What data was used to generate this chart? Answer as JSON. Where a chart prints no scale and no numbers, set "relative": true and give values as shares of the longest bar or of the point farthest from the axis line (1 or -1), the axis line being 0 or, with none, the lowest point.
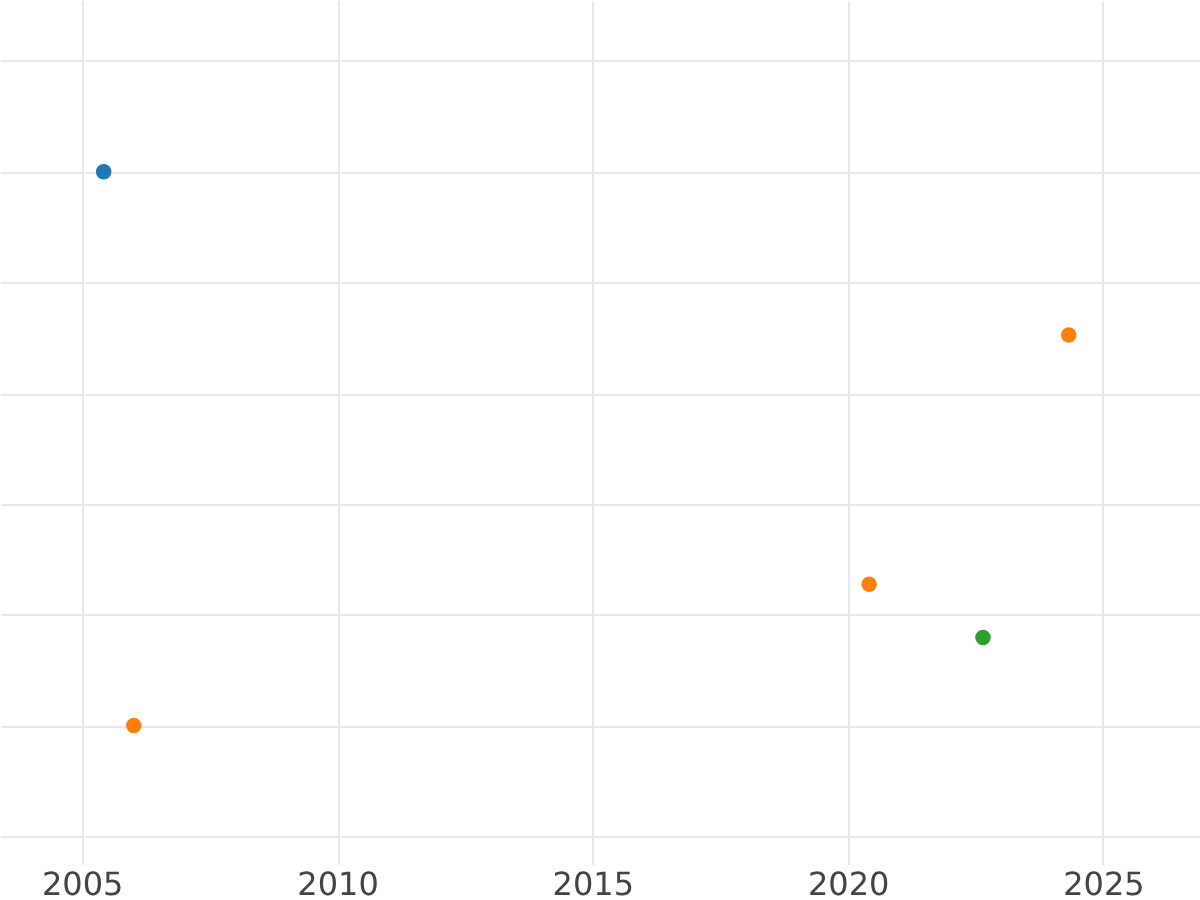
{
  "chart_data": {
    "type": "scatter",
    "relative": true,
    "xlim": [
      2003.4,
      2026.9
    ],
    "xticks": [
      2005,
      2010,
      2015,
      2020,
      2025
    ],
    "grid": true,
    "legend": false,
    "marker": "circle",
    "series": [
      {
        "color": "#1f77b4",
        "x": [
          2005.43
        ],
        "values": [
          1
        ]
      },
      {
        "color": "#ff7f0e",
        "x": [
          2006.02,
          2020.42,
          2024.33
        ],
        "values": [
          0,
          0.255,
          0.705
        ]
      },
      {
        "color": "#2ca02c",
        "x": [
          2022.65
        ],
        "values": [
          0.159
        ]
      }
    ]
  }
}
